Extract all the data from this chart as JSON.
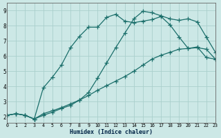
{
  "xlabel": "Humidex (Indice chaleur)",
  "bg_color": "#cce8e6",
  "line_color": "#1a6e6a",
  "grid_color": "#aacfcc",
  "xlim": [
    0,
    23
  ],
  "ylim": [
    1.6,
    9.5
  ],
  "xticks": [
    0,
    1,
    2,
    3,
    4,
    5,
    6,
    7,
    8,
    9,
    10,
    11,
    12,
    13,
    14,
    15,
    16,
    17,
    18,
    19,
    20,
    21,
    22,
    23
  ],
  "yticks": [
    2,
    3,
    4,
    5,
    6,
    7,
    8,
    9
  ],
  "line1_x": [
    0,
    1,
    2,
    3,
    4,
    5,
    6,
    7,
    8,
    9,
    10,
    11,
    12,
    13,
    14,
    15,
    16,
    17,
    18,
    19,
    20,
    21,
    22,
    23
  ],
  "line1_y": [
    2.1,
    2.2,
    2.1,
    1.85,
    2.1,
    2.3,
    2.55,
    2.75,
    3.1,
    3.6,
    4.55,
    5.55,
    6.55,
    7.5,
    8.45,
    8.95,
    8.85,
    8.65,
    8.45,
    8.35,
    8.45,
    8.25,
    7.25,
    6.25
  ],
  "line2_x": [
    0,
    1,
    2,
    3,
    4,
    5,
    6,
    7,
    8,
    9,
    10,
    11,
    12,
    13,
    14,
    15,
    16,
    17,
    18,
    19,
    20,
    21,
    22,
    23
  ],
  "line2_y": [
    2.1,
    2.2,
    2.1,
    1.85,
    3.9,
    4.6,
    5.4,
    6.55,
    7.3,
    7.9,
    7.9,
    8.55,
    8.75,
    8.3,
    8.2,
    8.3,
    8.4,
    8.6,
    8.05,
    7.25,
    6.5,
    6.55,
    6.45,
    5.8
  ],
  "line3_x": [
    0,
    1,
    2,
    3,
    4,
    5,
    6,
    7,
    8,
    9,
    10,
    11,
    12,
    13,
    14,
    15,
    16,
    17,
    18,
    19,
    20,
    21,
    22,
    23
  ],
  "line3_y": [
    2.1,
    2.2,
    2.1,
    1.85,
    2.2,
    2.4,
    2.6,
    2.85,
    3.1,
    3.4,
    3.75,
    4.05,
    4.35,
    4.65,
    5.0,
    5.4,
    5.8,
    6.05,
    6.25,
    6.45,
    6.5,
    6.6,
    5.9,
    5.8
  ],
  "marker_x1": [
    0,
    1,
    2,
    3,
    4,
    5,
    6,
    7,
    8,
    9,
    10,
    11,
    12,
    13,
    14,
    15,
    16,
    17,
    18,
    19,
    20,
    21,
    22,
    23
  ],
  "marker_x2": [
    0,
    1,
    2,
    3,
    4,
    5,
    6,
    7,
    8,
    9,
    10,
    11,
    12,
    13,
    14,
    15,
    16,
    17,
    18,
    19,
    20,
    21,
    22,
    23
  ],
  "marker_x3": [
    0,
    2,
    3,
    10,
    15,
    20,
    22,
    23
  ]
}
